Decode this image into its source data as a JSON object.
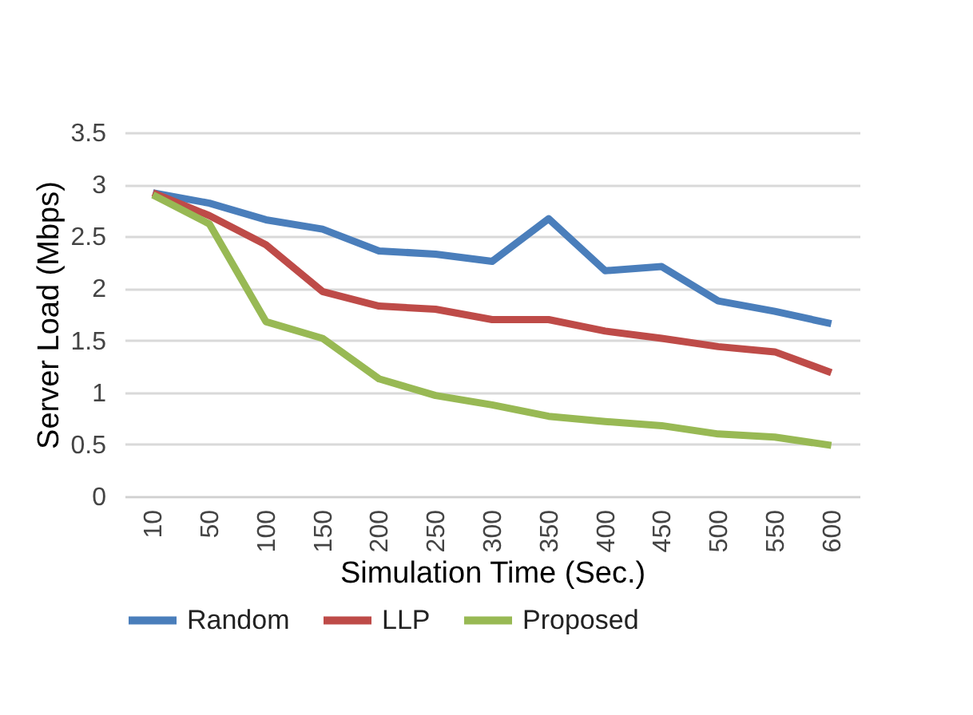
{
  "chart_data": {
    "type": "line",
    "xlabel": "Simulation Time (Sec.)",
    "ylabel": "Server Load (Mbps)",
    "categories": [
      "10",
      "50",
      "100",
      "150",
      "200",
      "250",
      "300",
      "350",
      "400",
      "450",
      "500",
      "550",
      "600"
    ],
    "series": [
      {
        "name": "Random",
        "color": "#4a7ebb",
        "values": [
          2.92,
          2.82,
          2.66,
          2.57,
          2.36,
          2.33,
          2.26,
          2.67,
          2.17,
          2.21,
          1.88,
          1.78,
          1.66
        ]
      },
      {
        "name": "LLP",
        "color": "#be4b48",
        "values": [
          2.92,
          2.7,
          2.42,
          1.97,
          1.83,
          1.8,
          1.7,
          1.7,
          1.59,
          1.52,
          1.44,
          1.39,
          1.19
        ]
      },
      {
        "name": "Proposed",
        "color": "#98b954",
        "values": [
          2.9,
          2.62,
          1.68,
          1.52,
          1.13,
          0.97,
          0.88,
          0.77,
          0.72,
          0.68,
          0.6,
          0.57,
          0.49
        ]
      }
    ],
    "ylim": [
      0,
      3.5
    ],
    "yticks": [
      0,
      0.5,
      1,
      1.5,
      2,
      2.5,
      3,
      3.5
    ],
    "grid": "y",
    "legend": "bottom",
    "marker": "none",
    "line_style": "solid"
  }
}
